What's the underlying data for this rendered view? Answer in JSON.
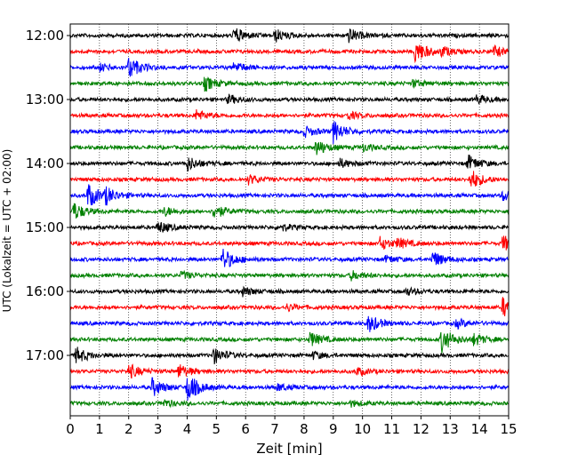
{
  "chart_data": {
    "type": "line",
    "title": "",
    "xlabel": "Zeit  [min]",
    "ylabel": "UTC (Lokalzeit = UTC + 02:00)",
    "xlim": [
      0,
      15
    ],
    "x_ticks": [
      0,
      1,
      2,
      3,
      4,
      5,
      6,
      7,
      8,
      9,
      10,
      11,
      12,
      13,
      14,
      15
    ],
    "y_tick_labels": [
      "12:00",
      "13:00",
      "14:00",
      "15:00",
      "16:00",
      "17:00"
    ],
    "row_interval_minutes": 15,
    "start_time": "12:00",
    "grid": "vertical dotted at each minute",
    "legend": "none",
    "colors": [
      "#000000",
      "#ff0000",
      "#0000ff",
      "#008000"
    ],
    "rows": [
      {
        "time": "12:00",
        "color": "#000000",
        "events": [
          [
            5.6,
            9
          ],
          [
            7.0,
            7
          ],
          [
            9.5,
            8
          ]
        ]
      },
      {
        "time": "12:15",
        "color": "#ff0000",
        "events": [
          [
            11.8,
            13
          ],
          [
            12.7,
            5
          ],
          [
            14.5,
            6
          ]
        ]
      },
      {
        "time": "12:30",
        "color": "#0000ff",
        "events": [
          [
            2.0,
            12
          ],
          [
            5.6,
            6
          ],
          [
            1.0,
            4
          ]
        ]
      },
      {
        "time": "12:45",
        "color": "#008000",
        "events": [
          [
            4.6,
            8
          ],
          [
            11.7,
            4
          ]
        ]
      },
      {
        "time": "13:00",
        "color": "#000000",
        "events": [
          [
            5.4,
            5
          ],
          [
            13.9,
            5
          ]
        ]
      },
      {
        "time": "13:15",
        "color": "#ff0000",
        "events": [
          [
            4.3,
            6
          ],
          [
            9.5,
            4
          ]
        ]
      },
      {
        "time": "13:30",
        "color": "#0000ff",
        "events": [
          [
            9.0,
            12
          ],
          [
            8.0,
            6
          ]
        ]
      },
      {
        "time": "13:45",
        "color": "#008000",
        "events": [
          [
            8.4,
            9
          ],
          [
            10.0,
            4
          ]
        ]
      },
      {
        "time": "14:00",
        "color": "#000000",
        "events": [
          [
            4.0,
            8
          ],
          [
            9.2,
            5
          ],
          [
            13.6,
            9
          ]
        ]
      },
      {
        "time": "14:15",
        "color": "#ff0000",
        "events": [
          [
            13.7,
            11
          ],
          [
            6.1,
            5
          ]
        ]
      },
      {
        "time": "14:30",
        "color": "#0000ff",
        "events": [
          [
            0.6,
            14
          ],
          [
            1.2,
            8
          ],
          [
            14.8,
            6
          ]
        ]
      },
      {
        "time": "14:45",
        "color": "#008000",
        "events": [
          [
            0.1,
            10
          ],
          [
            4.9,
            8
          ],
          [
            3.2,
            5
          ]
        ]
      },
      {
        "time": "15:00",
        "color": "#000000",
        "events": [
          [
            3.0,
            7
          ],
          [
            7.2,
            4
          ]
        ]
      },
      {
        "time": "15:15",
        "color": "#ff0000",
        "events": [
          [
            10.6,
            7
          ],
          [
            14.8,
            9
          ],
          [
            11.2,
            5
          ]
        ]
      },
      {
        "time": "15:30",
        "color": "#0000ff",
        "events": [
          [
            5.2,
            13
          ],
          [
            12.4,
            9
          ],
          [
            10.8,
            4
          ]
        ]
      },
      {
        "time": "15:45",
        "color": "#008000",
        "events": [
          [
            3.8,
            4
          ],
          [
            9.6,
            5
          ]
        ]
      },
      {
        "time": "16:00",
        "color": "#000000",
        "events": [
          [
            5.9,
            5
          ],
          [
            11.5,
            4
          ]
        ]
      },
      {
        "time": "16:15",
        "color": "#ff0000",
        "events": [
          [
            14.8,
            11
          ],
          [
            7.4,
            4
          ]
        ]
      },
      {
        "time": "16:30",
        "color": "#0000ff",
        "events": [
          [
            10.2,
            10
          ],
          [
            13.2,
            5
          ]
        ]
      },
      {
        "time": "16:45",
        "color": "#008000",
        "events": [
          [
            12.7,
            14
          ],
          [
            8.2,
            8
          ],
          [
            13.8,
            6
          ]
        ]
      },
      {
        "time": "17:00",
        "color": "#000000",
        "events": [
          [
            0.2,
            9
          ],
          [
            4.9,
            9
          ],
          [
            8.3,
            4
          ]
        ]
      },
      {
        "time": "17:15",
        "color": "#ff0000",
        "events": [
          [
            2.0,
            8
          ],
          [
            3.7,
            8
          ],
          [
            9.8,
            4
          ]
        ]
      },
      {
        "time": "17:30",
        "color": "#0000ff",
        "events": [
          [
            4.0,
            16
          ],
          [
            2.8,
            10
          ],
          [
            7.1,
            4
          ]
        ]
      },
      {
        "time": "17:45",
        "color": "#008000",
        "events": [
          [
            3.2,
            4
          ],
          [
            9.6,
            3
          ]
        ]
      }
    ]
  }
}
